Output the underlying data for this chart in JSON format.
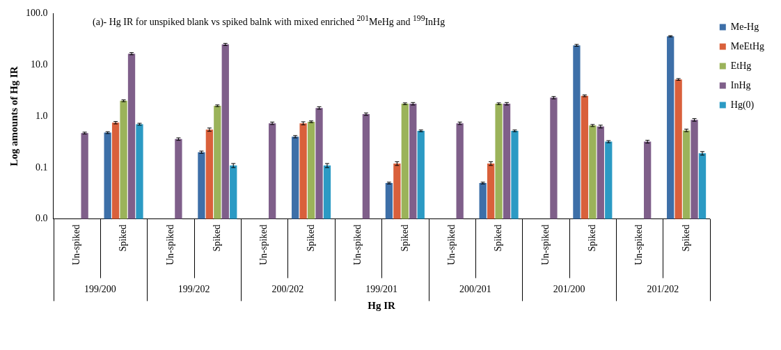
{
  "chart_data": {
    "type": "bar",
    "title": "(a)- Hg IR for unspiked blank vs spiked balnk with mixed enriched $^{201}$MeHg and $^{199}$InHg",
    "xlabel": "Hg IR",
    "ylabel": "Log amounts of Hg IR",
    "categories": [
      "Un-spiked",
      "Spiked",
      "Un-spiked",
      "Spiked",
      "Un-spiked",
      "Spiked",
      "Un-spiked",
      "Spiked",
      "Un-spiked",
      "Spiked",
      "Un-spiked",
      "Spiked",
      "Un-spiked",
      "Spiked"
    ],
    "annotations": [
      "199/200",
      "199/202",
      "200/202",
      "199/201",
      "200/201",
      "201/200",
      "201/202"
    ],
    "series": [
      {
        "name": "Me-Hg",
        "color": "#3d6fa8",
        "values": [
          null,
          0.48,
          null,
          0.2,
          null,
          0.4,
          null,
          0.05,
          null,
          0.05,
          null,
          24,
          null,
          36
        ],
        "errors": [
          null,
          0.02,
          null,
          0.01,
          null,
          0.02,
          null,
          0.002,
          null,
          0.002,
          null,
          1,
          null,
          1
        ]
      },
      {
        "name": "MeEtHg",
        "color": "#d9603b",
        "values": [
          null,
          0.75,
          null,
          0.55,
          null,
          0.73,
          null,
          0.12,
          null,
          0.12,
          null,
          2.5,
          null,
          5.2
        ],
        "errors": [
          null,
          0.04,
          null,
          0.04,
          null,
          0.05,
          null,
          0.01,
          null,
          0.01,
          null,
          0.1,
          null,
          0.2
        ]
      },
      {
        "name": "EtHg",
        "color": "#9bb35a",
        "values": [
          null,
          2.0,
          null,
          1.6,
          null,
          0.78,
          null,
          1.75,
          null,
          1.75,
          null,
          0.66,
          null,
          0.53
        ],
        "errors": [
          null,
          0.08,
          null,
          0.06,
          null,
          0.03,
          null,
          0.07,
          null,
          0.07,
          null,
          0.03,
          null,
          0.03
        ]
      },
      {
        "name": "InHg",
        "color": "#7f5f8a",
        "values": [
          0.47,
          16.5,
          0.36,
          25,
          0.73,
          1.45,
          1.1,
          1.75,
          0.73,
          1.75,
          2.3,
          0.63,
          0.32,
          0.85
        ],
        "errors": [
          0.02,
          0.8,
          0.02,
          1.2,
          0.04,
          0.08,
          0.06,
          0.1,
          0.04,
          0.1,
          0.12,
          0.04,
          0.02,
          0.05
        ]
      },
      {
        "name": "Hg(0)",
        "color": "#2b9ac4",
        "values": [
          null,
          0.7,
          null,
          0.11,
          null,
          0.11,
          null,
          0.52,
          null,
          0.52,
          null,
          0.32,
          null,
          0.19
        ],
        "errors": [
          null,
          0.03,
          null,
          0.01,
          null,
          0.01,
          null,
          0.02,
          null,
          0.02,
          null,
          0.015,
          null,
          0.015
        ]
      }
    ],
    "ylim": [
      0.01,
      100
    ],
    "yticks": [
      {
        "value": 0.01,
        "label": "0.0"
      },
      {
        "value": 0.1,
        "label": "0.1"
      },
      {
        "value": 1,
        "label": "1.0"
      },
      {
        "value": 10,
        "label": "10.0"
      },
      {
        "value": 100,
        "label": "100.0"
      }
    ],
    "log": "y",
    "grid": false,
    "legend": "right"
  }
}
